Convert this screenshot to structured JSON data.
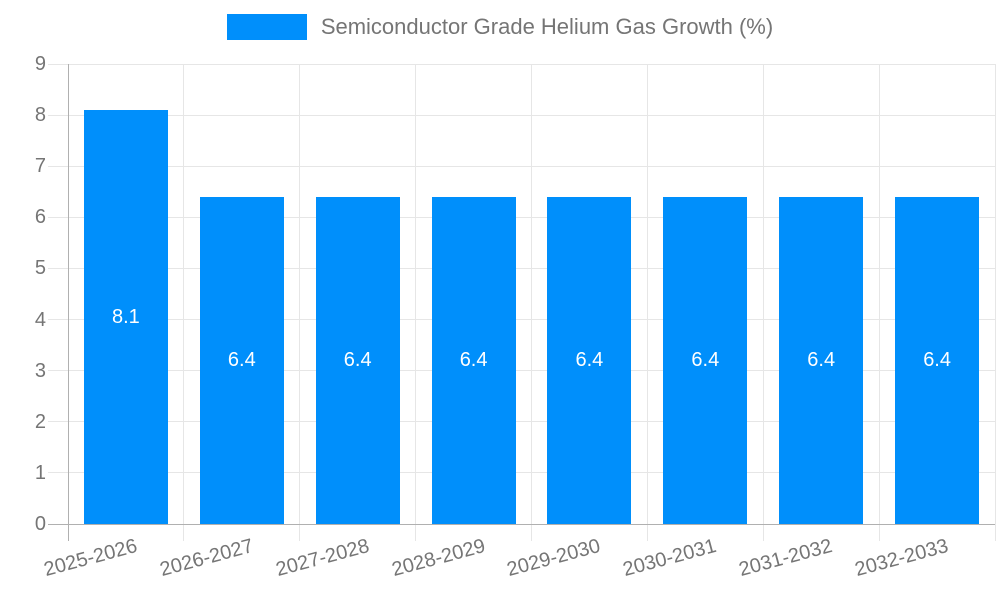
{
  "chart_data": {
    "type": "bar",
    "title": "Semiconductor Grade Helium Gas Growth (%)",
    "categories": [
      "2025-2026",
      "2026-2027",
      "2027-2028",
      "2028-2029",
      "2029-2030",
      "2030-2031",
      "2031-2032",
      "2032-2033"
    ],
    "values": [
      8.1,
      6.4,
      6.4,
      6.4,
      6.4,
      6.4,
      6.4,
      6.4
    ],
    "xlabel": "",
    "ylabel": "",
    "ylim": [
      0,
      9
    ],
    "yticks": [
      0,
      1,
      2,
      3,
      4,
      5,
      6,
      7,
      8,
      9
    ],
    "legend_position": "top",
    "grid": true,
    "colors": {
      "bar": "#008FFB",
      "grid": "#e6e6e6",
      "axis": "#b0b0b0",
      "tick_label": "#757575",
      "value_label": "#ffffff",
      "legend_text": "#757575",
      "background": "#ffffff"
    }
  }
}
